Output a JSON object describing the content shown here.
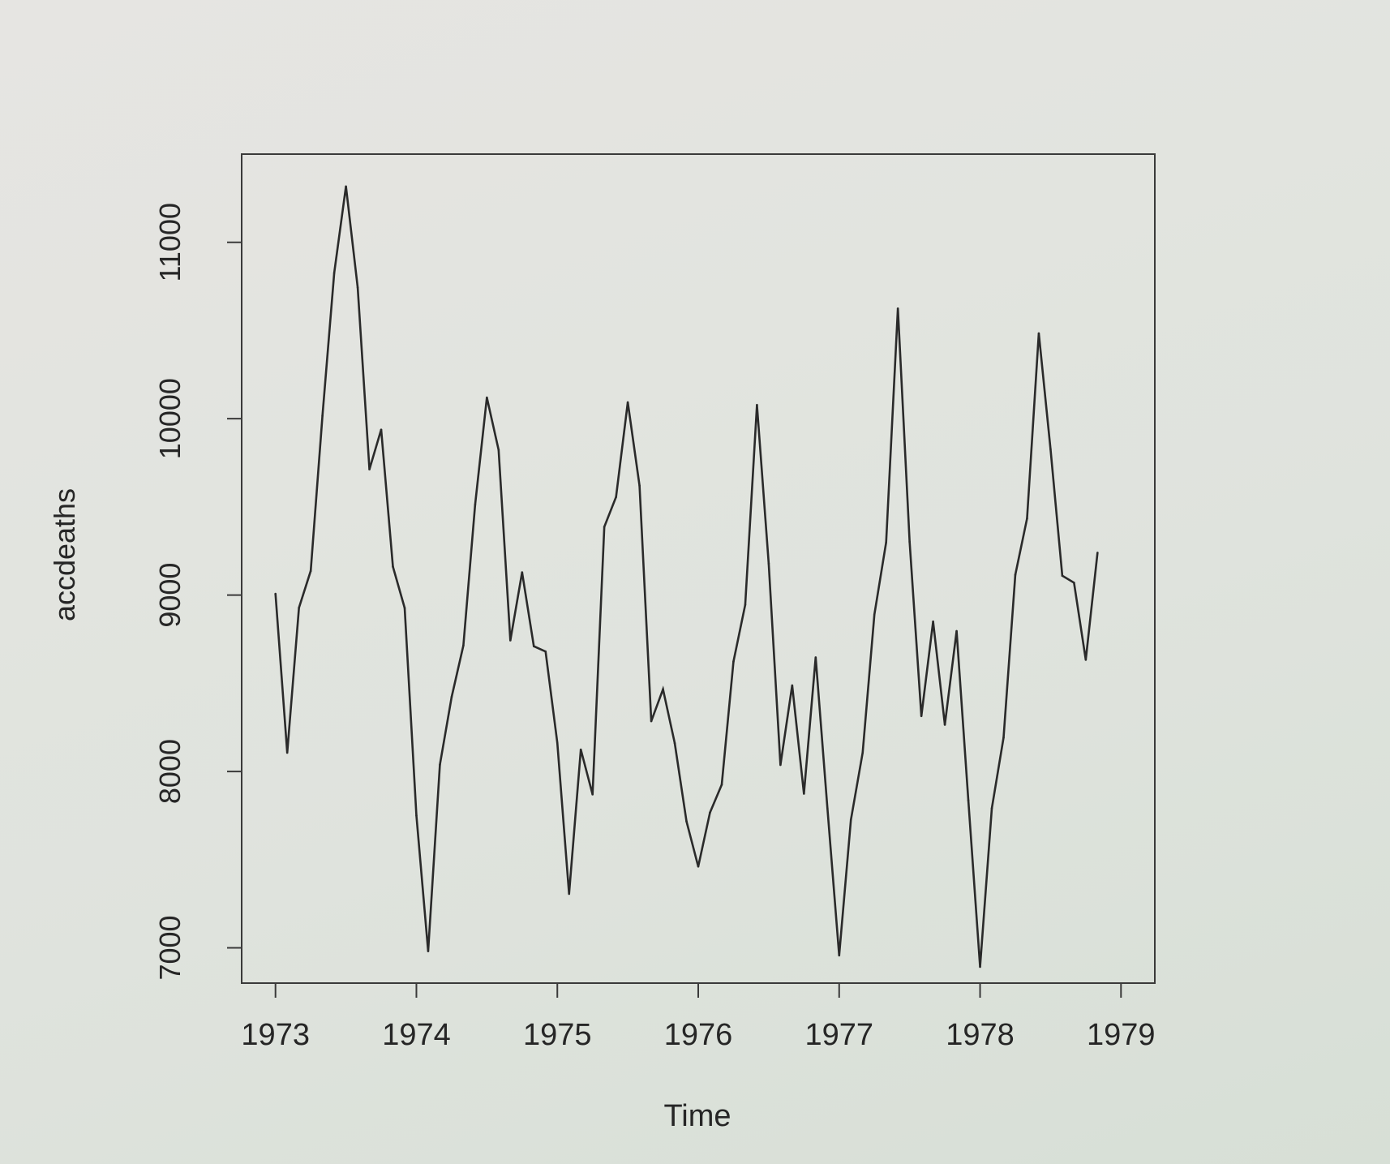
{
  "chart_data": {
    "type": "line",
    "title": "",
    "xlabel": "Time",
    "ylabel": "accdeaths",
    "xlim": [
      1972.76,
      1979.24
    ],
    "ylim": [
      6800,
      11500
    ],
    "x_ticks": [
      1973,
      1974,
      1975,
      1976,
      1977,
      1978,
      1979
    ],
    "y_ticks": [
      7000,
      8000,
      9000,
      10000,
      11000
    ],
    "x_tick_labels": [
      "1973",
      "1974",
      "1975",
      "1976",
      "1977",
      "1978",
      "1979"
    ],
    "y_tick_labels": [
      "7000",
      "8000",
      "9000",
      "10000",
      "11000"
    ],
    "grid": false,
    "line_color": "#2a2a2a",
    "series": [
      {
        "start": 1973.0,
        "frequency": 12,
        "values": [
          9007,
          8106,
          8928,
          9137,
          10017,
          10826,
          11317,
          10744,
          9713,
          9938,
          9161,
          8927,
          7750,
          6981,
          8038,
          8422,
          8714,
          9512,
          10120,
          9823,
          8743,
          9129,
          8710,
          8680,
          8162,
          7306,
          8124,
          7870,
          9387,
          9556,
          10093,
          9620,
          8285,
          8466,
          8160,
          7717,
          7461,
          7767,
          7925,
          8623,
          8945,
          10078,
          9179,
          8037,
          8488,
          7874,
          8647,
          7792,
          6957,
          7726,
          8106,
          8890,
          9299,
          10625,
          9302,
          8314,
          8850,
          8265,
          8796,
          7836,
          6892,
          7791,
          8192,
          9115,
          9434,
          10484,
          9827,
          9110,
          9070,
          8633,
          9240
        ]
      }
    ]
  }
}
